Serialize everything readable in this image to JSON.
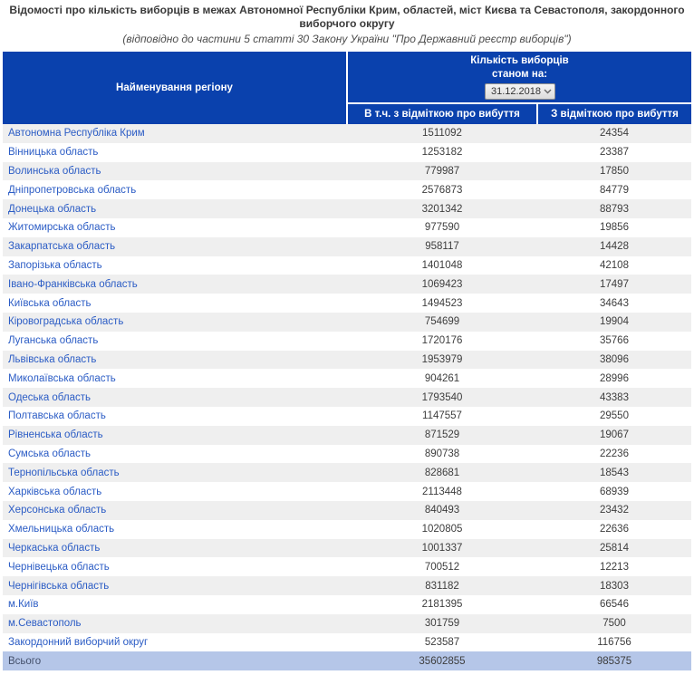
{
  "page": {
    "title": "Відомості про кількість виборців в межах Автономної Республіки Крим, областей, міст Києва та Севастополя, закордонного виборчого округу",
    "subtitle": "(відповідно до частини 5 статті 30 Закону України \"Про Державний реєстр виборців\")"
  },
  "table": {
    "header": {
      "region_col": "Найменування регіону",
      "count_line1": "Кількість виборців",
      "count_line2": "станом на:",
      "date_selected": "31.12.2018",
      "sub_col1": "В т.ч. з відміткою про вибуття",
      "sub_col2": "З відміткою про вибуття"
    },
    "rows": [
      {
        "region": "Автономна Республіка Крим",
        "voters": "1511092",
        "departed": "24354"
      },
      {
        "region": "Вінницька область",
        "voters": "1253182",
        "departed": "23387"
      },
      {
        "region": "Волинська область",
        "voters": "779987",
        "departed": "17850"
      },
      {
        "region": "Дніпропетровська область",
        "voters": "2576873",
        "departed": "84779"
      },
      {
        "region": "Донецька область",
        "voters": "3201342",
        "departed": "88793"
      },
      {
        "region": "Житомирська область",
        "voters": "977590",
        "departed": "19856"
      },
      {
        "region": "Закарпатська область",
        "voters": "958117",
        "departed": "14428"
      },
      {
        "region": "Запорізька область",
        "voters": "1401048",
        "departed": "42108"
      },
      {
        "region": "Івано-Франківська область",
        "voters": "1069423",
        "departed": "17497"
      },
      {
        "region": "Київська область",
        "voters": "1494523",
        "departed": "34643"
      },
      {
        "region": "Кіровоградська область",
        "voters": "754699",
        "departed": "19904"
      },
      {
        "region": "Луганська область",
        "voters": "1720176",
        "departed": "35766"
      },
      {
        "region": "Львівська область",
        "voters": "1953979",
        "departed": "38096"
      },
      {
        "region": "Миколаївська область",
        "voters": "904261",
        "departed": "28996"
      },
      {
        "region": "Одеська область",
        "voters": "1793540",
        "departed": "43383"
      },
      {
        "region": "Полтавська область",
        "voters": "1147557",
        "departed": "29550"
      },
      {
        "region": "Рівненська область",
        "voters": "871529",
        "departed": "19067"
      },
      {
        "region": "Сумська область",
        "voters": "890738",
        "departed": "22236"
      },
      {
        "region": "Тернопільська область",
        "voters": "828681",
        "departed": "18543"
      },
      {
        "region": "Харківська область",
        "voters": "2113448",
        "departed": "68939"
      },
      {
        "region": "Херсонська область",
        "voters": "840493",
        "departed": "23432"
      },
      {
        "region": "Хмельницька область",
        "voters": "1020805",
        "departed": "22636"
      },
      {
        "region": "Черкаська область",
        "voters": "1001337",
        "departed": "25814"
      },
      {
        "region": "Чернівецька область",
        "voters": "700512",
        "departed": "12213"
      },
      {
        "region": "Чернігівська область",
        "voters": "831182",
        "departed": "18303"
      },
      {
        "region": "м.Київ",
        "voters": "2181395",
        "departed": "66546"
      },
      {
        "region": "м.Севастополь",
        "voters": "301759",
        "departed": "7500"
      },
      {
        "region": "Закордонний виборчий округ",
        "voters": "523587",
        "departed": "116756"
      }
    ],
    "total": {
      "label": "Всього",
      "voters": "35602855",
      "departed": "985375"
    }
  },
  "colors": {
    "header_bg": "#0a41ad",
    "link": "#2b5cc5",
    "stripe": "#efefef",
    "total_bg": "#b5c6e8",
    "body_text": "#3d3d3d"
  }
}
